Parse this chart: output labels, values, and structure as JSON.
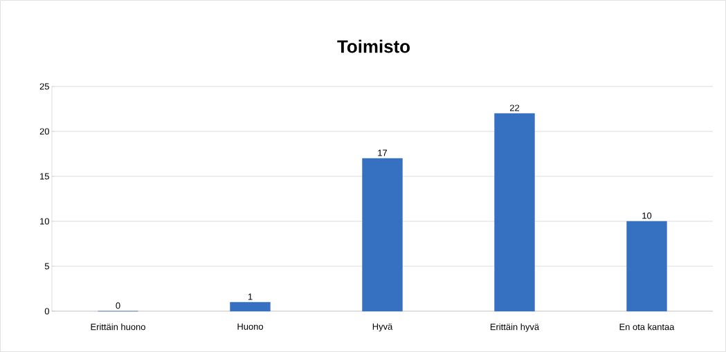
{
  "chart_data": {
    "type": "bar",
    "title": "Toimisto",
    "categories": [
      "Erittäin huono",
      "Huono",
      "Hyvä",
      "Erittäin hyvä",
      "En ota kantaa"
    ],
    "values": [
      0,
      1,
      17,
      22,
      10
    ],
    "color": "#3670c0",
    "ylim": [
      0,
      25
    ],
    "yticks": [
      0,
      5,
      10,
      15,
      20,
      25
    ],
    "grid": "y",
    "data_labels": true
  }
}
